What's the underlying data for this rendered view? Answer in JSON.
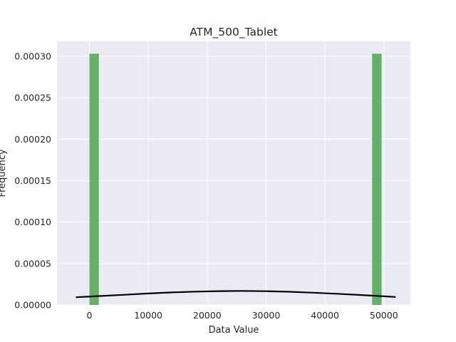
{
  "chart_data": {
    "type": "bar",
    "subtype": "histogram-with-density-curve",
    "title": "ATM_500_Tablet",
    "xlabel": "Data Value",
    "ylabel": "Frequency",
    "xlim": [
      -5500,
      54500
    ],
    "ylim": [
      0,
      0.000318
    ],
    "x_ticks": [
      0,
      10000,
      20000,
      30000,
      40000,
      50000
    ],
    "x_tick_labels": [
      "0",
      "10000",
      "20000",
      "30000",
      "40000",
      "50000"
    ],
    "y_ticks": [
      0,
      5e-05,
      0.0001,
      0.00015,
      0.0002,
      0.00025,
      0.0003
    ],
    "y_tick_labels": [
      "0.00000",
      "0.00005",
      "0.00010",
      "0.00015",
      "0.00020",
      "0.00025",
      "0.00030"
    ],
    "grid": true,
    "background": "#eaeaf2",
    "bar_color": "#4ca64c",
    "curve_color": "#000000",
    "bins": [
      {
        "x0": 0,
        "x1": 1600,
        "density": 0.000303
      },
      {
        "x0": 48000,
        "x1": 49600,
        "density": 0.000303
      }
    ],
    "density_curve": {
      "x": [
        -2300,
        2000,
        6000,
        10000,
        14000,
        18000,
        22000,
        26000,
        30000,
        34000,
        38000,
        42000,
        46000,
        50000,
        52000
      ],
      "y": [
        9.3e-06,
        1.08e-05,
        1.23e-05,
        1.38e-05,
        1.51e-05,
        1.61e-05,
        1.67e-05,
        1.69e-05,
        1.66e-05,
        1.59e-05,
        1.48e-05,
        1.35e-05,
        1.2e-05,
        1.04e-05,
        9.6e-06
      ]
    }
  }
}
